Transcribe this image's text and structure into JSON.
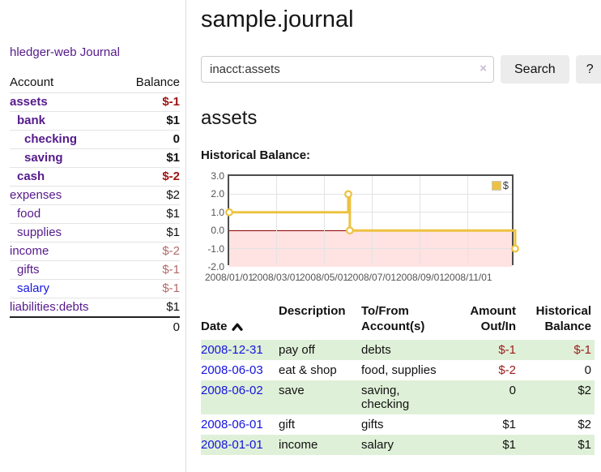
{
  "sidebar": {
    "brand": "hledger-web",
    "nav": {
      "journal": "Journal"
    },
    "table": {
      "account_header": "Account",
      "balance_header": "Balance",
      "total": "0"
    },
    "accounts": [
      {
        "name": "assets",
        "balance": "$-1",
        "level": 1,
        "bold": true
      },
      {
        "name": "bank",
        "balance": "$1",
        "level": 2,
        "bold": true
      },
      {
        "name": "checking",
        "balance": "0",
        "level": 3,
        "bold": true
      },
      {
        "name": "saving",
        "balance": "$1",
        "level": 3,
        "bold": true
      },
      {
        "name": "cash",
        "balance": "$-2",
        "level": 2,
        "bold": true
      },
      {
        "name": "expenses",
        "balance": "$2",
        "level": 1,
        "bold": false
      },
      {
        "name": "food",
        "balance": "$1",
        "level": 2,
        "bold": false
      },
      {
        "name": "supplies",
        "balance": "$1",
        "level": 2,
        "bold": false
      },
      {
        "name": "income",
        "balance": "$-2",
        "level": 1,
        "bold": false
      },
      {
        "name": "gifts",
        "balance": "$-1",
        "level": 2,
        "bold": false
      },
      {
        "name": "salary",
        "balance": "$-1",
        "level": 2,
        "bold": false,
        "link_color": "blue"
      },
      {
        "name": "liabilities:debts",
        "balance": "$1",
        "level": 1,
        "bold": false
      }
    ]
  },
  "header": {
    "title": "sample.journal"
  },
  "search": {
    "value": "inacct:assets",
    "clear_icon": "×",
    "search_button": "Search",
    "help_button": "?"
  },
  "account_page": {
    "title": "assets",
    "chart_heading": "Historical Balance:"
  },
  "chart_data": {
    "type": "line",
    "step": true,
    "title": "Historical Balance:",
    "series": [
      {
        "name": "$",
        "color": "#edc240",
        "points": [
          [
            "2008-01-01",
            1
          ],
          [
            "2008-06-01",
            2
          ],
          [
            "2008-06-03",
            0
          ],
          [
            "2008-12-31",
            -1
          ]
        ]
      }
    ],
    "x_range": [
      "2008-01-01",
      "2008-12-31"
    ],
    "ylim": [
      -2,
      3
    ],
    "y_ticks": [
      3,
      2,
      1,
      0,
      -1,
      -2
    ],
    "y_tick_labels": [
      "3.0",
      "2.0",
      "1.0",
      "0.0",
      "-1.0",
      "-2.0"
    ],
    "x_tick_dates": [
      "2008-01-01",
      "2008-03-01",
      "2008-05-01",
      "2008-07-01",
      "2008-09-01",
      "2008-11-01"
    ],
    "x_tick_labels": [
      "2008/01/01",
      "2008/03/01",
      "2008/05/01",
      "2008/07/01",
      "2008/09/01",
      "2008/11/01"
    ],
    "legend": {
      "label": "$",
      "position": "top-right"
    },
    "grid": true,
    "zero_line_color": "#8b0000",
    "negative_region_color": "#ffe2e2",
    "line_color": "#edc240"
  },
  "register": {
    "headers": {
      "date": "Date",
      "description": "Description",
      "accounts": "To/From\nAccount(s)",
      "amount": "Amount\nOut/In",
      "balance": "Historical\nBalance"
    },
    "sort_icon": "chevron-up",
    "rows": [
      {
        "date": "2008-12-31",
        "description": "pay off",
        "accounts": "debts",
        "amount": "$-1",
        "balance": "$-1"
      },
      {
        "date": "2008-06-03",
        "description": "eat & shop",
        "accounts": "food, supplies",
        "amount": "$-2",
        "balance": "0"
      },
      {
        "date": "2008-06-02",
        "description": "save",
        "accounts": "saving,\nchecking",
        "amount": "0",
        "balance": "$2"
      },
      {
        "date": "2008-06-01",
        "description": "gift",
        "accounts": "gifts",
        "amount": "$1",
        "balance": "$2"
      },
      {
        "date": "2008-01-01",
        "description": "income",
        "accounts": "salary",
        "amount": "$1",
        "balance": "$1"
      }
    ]
  },
  "colors": {
    "link_purple": "#551a8b",
    "link_blue": "#1616e0",
    "negative_bold": "#9e1212",
    "negative_dim": "#b46a6a",
    "register_negative": "#9b1b1b",
    "row_green": "#dff0d8",
    "chart_line": "#edc240"
  }
}
